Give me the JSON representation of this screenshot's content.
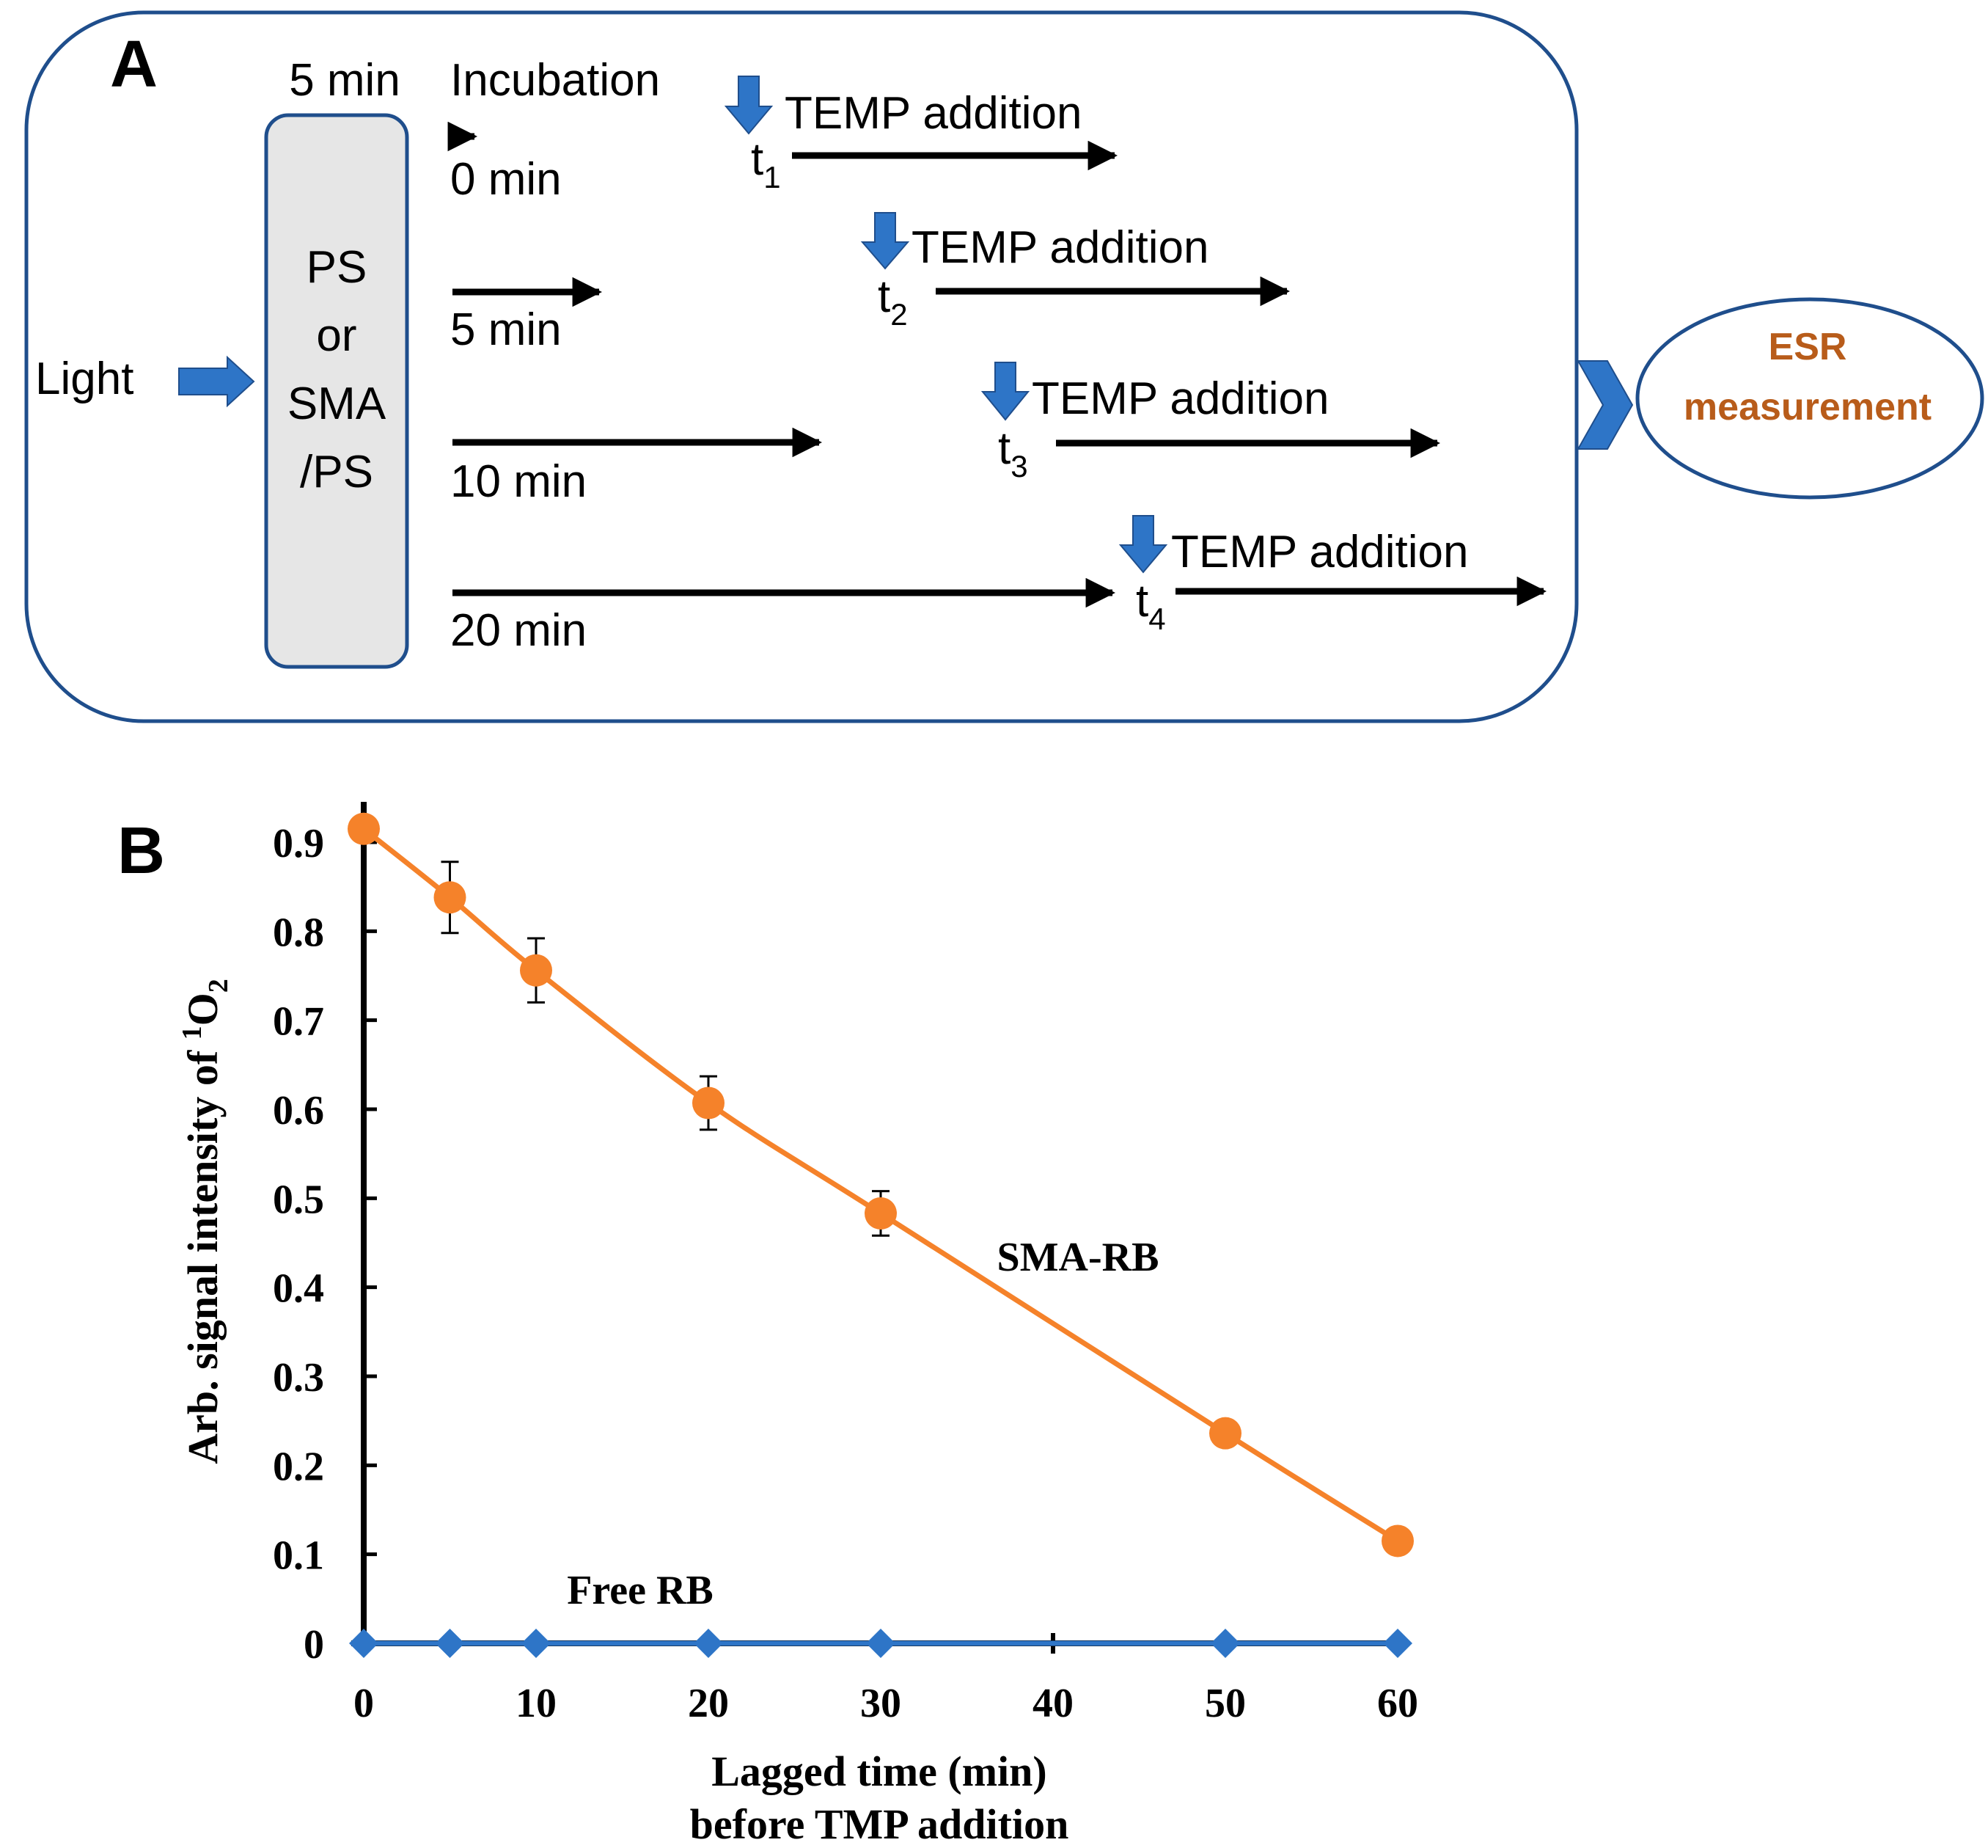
{
  "panel_a": {
    "label": "A",
    "input_label": "Light",
    "sample_lines": [
      "PS",
      "or",
      "SMA",
      "/PS"
    ],
    "sample_duration": "5 min",
    "incubation_header": "Incubation",
    "addition_label": "TEMP addition",
    "output_lines": [
      "ESR",
      "measurement"
    ],
    "rows": [
      {
        "incubation": "0 min",
        "time_symbol": "t",
        "time_index": "1"
      },
      {
        "incubation": "5 min",
        "time_symbol": "t",
        "time_index": "2"
      },
      {
        "incubation": "10 min",
        "time_symbol": "t",
        "time_index": "3"
      },
      {
        "incubation": "20 min",
        "time_symbol": "t",
        "time_index": "4"
      }
    ],
    "colors": {
      "frame": "#1f4e8c",
      "box_fill": "#e6e6e6",
      "arrow_blue": "#2e75c7",
      "output_text": "#b85c1a"
    }
  },
  "panel_b": {
    "label": "B"
  },
  "chart_data": {
    "type": "line",
    "xlabel": "Lagged time (min)",
    "xlabel_line2": "before TMP addition",
    "ylabel_prefix": "Arb. signal intensity of ",
    "ylabel_sup": "1",
    "ylabel_species": "O",
    "ylabel_sub": "2",
    "xlim": [
      0,
      60
    ],
    "ylim": [
      0,
      0.9
    ],
    "x_ticks": [
      "0",
      "10",
      "20",
      "30",
      "40",
      "50",
      "60"
    ],
    "y_ticks": [
      "0",
      "0.1",
      "0.2",
      "0.3",
      "0.4",
      "0.5",
      "0.6",
      "0.7",
      "0.8",
      "0.9"
    ],
    "series": [
      {
        "name": "SMA-RB",
        "color": "#f5822a",
        "marker": "circle",
        "x": [
          0,
          5,
          10,
          20,
          30,
          50,
          60
        ],
        "y": [
          0.915,
          0.838,
          0.756,
          0.607,
          0.483,
          0.236,
          0.115
        ],
        "err": [
          0.0,
          0.04,
          0.036,
          0.03,
          0.025,
          0.0,
          0.0
        ]
      },
      {
        "name": "Free RB",
        "color": "#2e75c7",
        "marker": "diamond",
        "x": [
          0,
          5,
          10,
          20,
          30,
          50,
          60
        ],
        "y": [
          0,
          0,
          0,
          0,
          0,
          0,
          0
        ],
        "err": [
          0,
          0,
          0,
          0,
          0,
          0,
          0
        ]
      }
    ]
  }
}
